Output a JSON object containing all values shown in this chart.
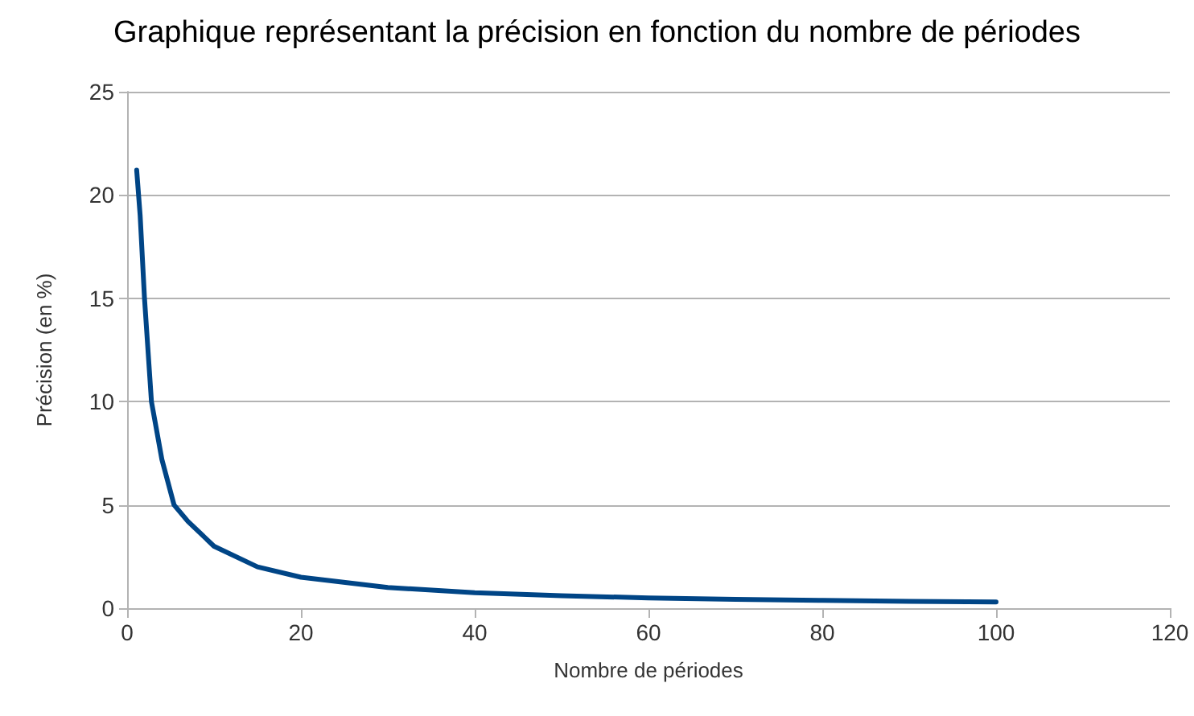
{
  "chart_data": {
    "type": "line",
    "title": "Graphique représentant la précision en fonction du nombre de périodes",
    "xlabel": "Nombre de périodes",
    "ylabel": "Précision (en %)",
    "x": [
      1.1,
      1.5,
      2,
      2.8,
      4,
      5.4,
      7,
      10,
      15,
      20,
      30,
      40,
      50,
      60,
      70,
      80,
      90,
      100
    ],
    "series": [
      {
        "color": "#004586",
        "values": [
          21.2,
          19,
          15,
          10,
          7.2,
          5,
          4.2,
          3,
          2,
          1.5,
          1,
          0.75,
          0.6,
          0.5,
          0.43,
          0.38,
          0.33,
          0.3
        ]
      }
    ],
    "xlim": [
      0,
      120
    ],
    "xticks": [
      0,
      20,
      40,
      60,
      80,
      100,
      120
    ],
    "ylim": [
      0,
      25
    ],
    "yticks": [
      0,
      5,
      10,
      15,
      20,
      25
    ],
    "grid": "y",
    "marker": "none",
    "line_style": "solid"
  }
}
